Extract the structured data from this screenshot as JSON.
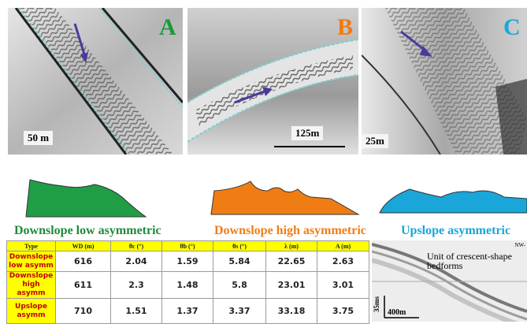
{
  "panels": [
    {
      "letter": "A",
      "scale": "50 m"
    },
    {
      "letter": "B",
      "scale": "125m"
    },
    {
      "letter": "C",
      "scale": "25m"
    }
  ],
  "profiles": [
    "Downslope low asymmetric",
    "Downslope high asymmetric",
    "Upslope asymmetric"
  ],
  "table": {
    "header": [
      "Type",
      "WD (m)",
      "θc (°)",
      "θb (°)",
      "θs (°)",
      "λ (m)",
      "A (m)"
    ],
    "rows": [
      [
        "Downslope low asymm",
        "616",
        "2.04",
        "1.59",
        "5.84",
        "22.65",
        "2.63"
      ],
      [
        "Downslope high asymm",
        "611",
        "2.3",
        "1.48",
        "5.8",
        "23.01",
        "3.01"
      ],
      [
        "Upslope asymm",
        "710",
        "1.51",
        "1.37",
        "3.37",
        "33.18",
        "3.75"
      ]
    ]
  },
  "seismic": {
    "direction": "NW-",
    "unit_label": "Unit of crescent-shape bedforms",
    "vertical_scale": "35ms",
    "horizontal_scale": "400m"
  }
}
